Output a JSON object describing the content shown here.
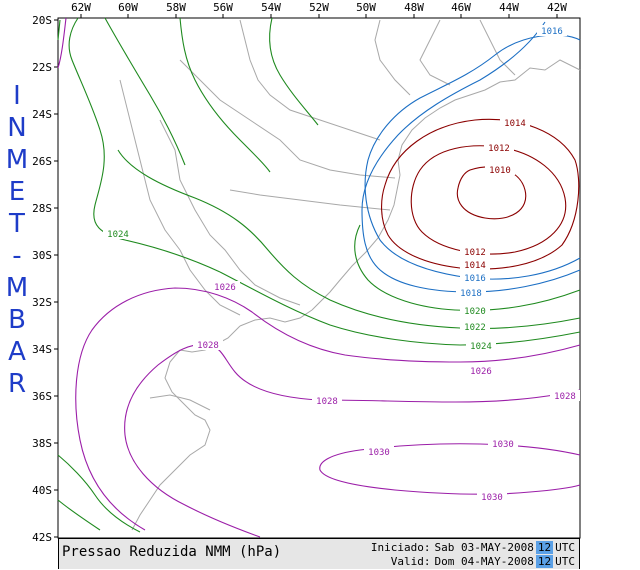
{
  "side_title": [
    "I",
    "N",
    "M",
    "E",
    "T",
    "-",
    "M",
    "B",
    "A",
    "R"
  ],
  "lon_ticks": [
    "62W",
    "60W",
    "58W",
    "56W",
    "54W",
    "52W",
    "50W",
    "48W",
    "46W",
    "44W",
    "42W"
  ],
  "lat_ticks": [
    "20S",
    "22S",
    "24S",
    "26S",
    "28S",
    "30S",
    "32S",
    "34S",
    "36S",
    "38S",
    "40S",
    "42S"
  ],
  "contour_labels": {
    "c1016_top": "1016",
    "c1014_top": "1014",
    "c1012_top": "1012",
    "c1010": "1010",
    "c1024_w": "1024",
    "c1012_bottom": "1012",
    "c1014_bottom": "1014",
    "c1016_bottom": "1016",
    "c1018": "1018",
    "c1020": "1020",
    "c1022": "1022",
    "c1024_e": "1024",
    "c1026_w": "1026",
    "c1026_e": "1026",
    "c1028_w": "1028",
    "c1028_c": "1028",
    "c1028_e": "1028",
    "c1030_w": "1030",
    "c1030_ne": "1030",
    "c1030_s": "1030"
  },
  "footer": {
    "title": "Pressao Reduzida NMM (hPa)",
    "initiated_label": "Iniciado:",
    "initiated_date": "Sab 03-MAY-2008",
    "initiated_hour": "12",
    "valid_label": "Valid:",
    "valid_date": "Dom 04-MAY-2008",
    "valid_hour": "12",
    "utc": "UTC"
  },
  "colors": {
    "title_blue": "#1e3cc8",
    "isobar_low": "#8b0000",
    "isobar_mid": "#1c6fc4",
    "isobar_high": "#1f8a1f",
    "isobar_very_high": "#9b1ea8",
    "coast": "#a0a0a0",
    "utc_highlight": "#5aa0e6"
  }
}
